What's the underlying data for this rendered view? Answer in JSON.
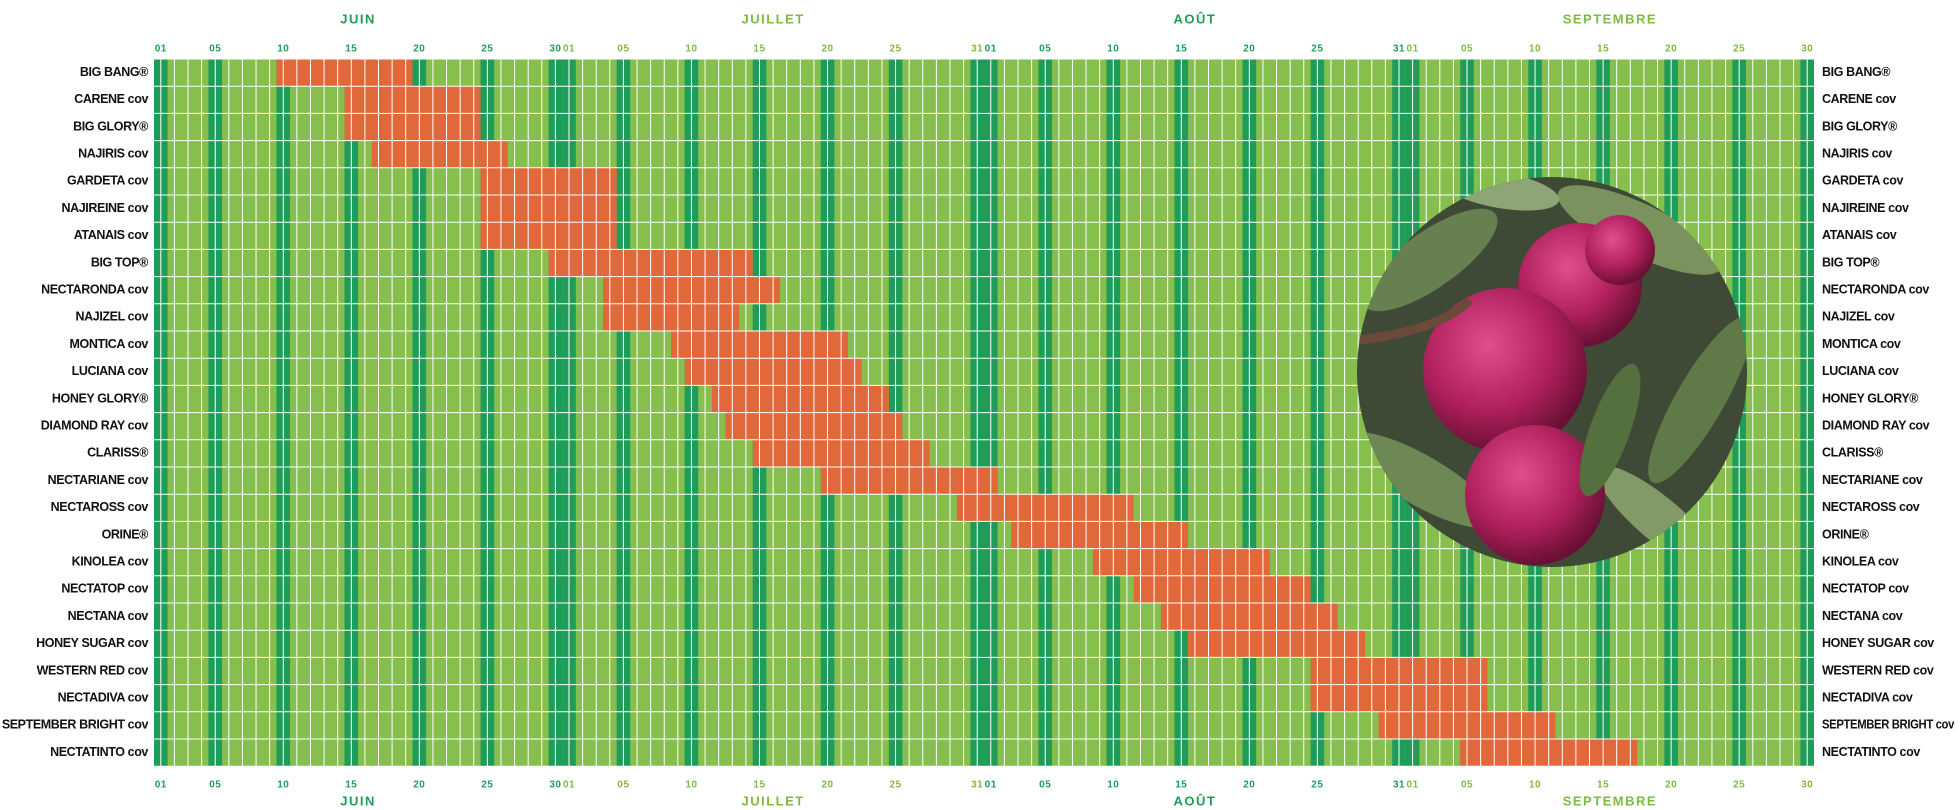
{
  "chart_data": {
    "type": "gantt",
    "xlim": [
      0.5,
      122.5
    ],
    "months": [
      {
        "label": "JUIN",
        "start": 1,
        "end": 30,
        "color": "#1f9d58"
      },
      {
        "label": "JUILLET",
        "start": 31,
        "end": 61,
        "color": "#7dbb42"
      },
      {
        "label": "AOÛT",
        "start": 62,
        "end": 92,
        "color": "#1f9d58"
      },
      {
        "label": "SEPTEMBRE",
        "start": 93,
        "end": 122,
        "color": "#7dbb42"
      }
    ],
    "xticks": [
      {
        "value": 1,
        "label": "01"
      },
      {
        "value": 5,
        "label": "05"
      },
      10,
      15,
      20,
      25,
      30,
      {
        "value": 31,
        "label": "01"
      },
      {
        "value": 35,
        "label": "05"
      },
      {
        "value": 40,
        "label": "10"
      },
      {
        "value": 45,
        "label": "15"
      },
      {
        "value": 50,
        "label": "20"
      },
      {
        "value": 55,
        "label": "25"
      },
      {
        "value": 61,
        "label": "31"
      },
      {
        "value": 62,
        "label": "01"
      },
      {
        "value": 66,
        "label": "05"
      },
      {
        "value": 71,
        "label": "10"
      },
      {
        "value": 76,
        "label": "15"
      },
      {
        "value": 81,
        "label": "20"
      },
      {
        "value": 86,
        "label": "25"
      },
      {
        "value": 92,
        "label": "31"
      },
      {
        "value": 93,
        "label": "01"
      },
      {
        "value": 97,
        "label": "05"
      },
      {
        "value": 102,
        "label": "10"
      },
      {
        "value": 107,
        "label": "15"
      },
      {
        "value": 112,
        "label": "20"
      },
      {
        "value": 117,
        "label": "25"
      },
      {
        "value": 122,
        "label": "30"
      }
    ],
    "colors": {
      "bar": "#e1683a",
      "cell": "#86bf4d",
      "tick_column": "#1f9d58"
    },
    "tasks": [
      {
        "name": "BIG BANG®",
        "start": 10,
        "end": 19
      },
      {
        "name": "CARENE cov",
        "start": 15,
        "end": 24
      },
      {
        "name": "BIG GLORY®",
        "start": 15,
        "end": 24
      },
      {
        "name": "NAJIRIS cov",
        "start": 17,
        "end": 26
      },
      {
        "name": "GARDETA cov",
        "start": 25,
        "end": 34
      },
      {
        "name": "NAJIREINE cov",
        "start": 25,
        "end": 34
      },
      {
        "name": "ATANAIS cov",
        "start": 25,
        "end": 34
      },
      {
        "name": "BIG TOP®",
        "start": 30,
        "end": 44
      },
      {
        "name": "NECTARONDA cov",
        "start": 34,
        "end": 46
      },
      {
        "name": "NAJIZEL cov",
        "start": 34,
        "end": 43
      },
      {
        "name": "MONTICA cov",
        "start": 39,
        "end": 51
      },
      {
        "name": "LUCIANA cov",
        "start": 40,
        "end": 52
      },
      {
        "name": "HONEY GLORY®",
        "start": 42,
        "end": 54
      },
      {
        "name": "DIAMOND RAY cov",
        "start": 43,
        "end": 55
      },
      {
        "name": "CLARISS®",
        "start": 45,
        "end": 57
      },
      {
        "name": "NECTARIANE cov",
        "start": 50,
        "end": 62
      },
      {
        "name": "NECTAROSS cov",
        "start": 60,
        "end": 72
      },
      {
        "name": "ORINE®",
        "start": 64,
        "end": 76
      },
      {
        "name": "KINOLEA cov",
        "start": 70,
        "end": 82
      },
      {
        "name": "NECTATOP cov",
        "start": 73,
        "end": 85
      },
      {
        "name": "NECTANA cov",
        "start": 75,
        "end": 87
      },
      {
        "name": "HONEY SUGAR cov",
        "start": 77,
        "end": 89
      },
      {
        "name": "WESTERN RED cov",
        "start": 86,
        "end": 98
      },
      {
        "name": "NECTADIVA cov",
        "start": 86,
        "end": 98
      },
      {
        "name": "SEPTEMBER BRIGHT cov",
        "start": 91,
        "end": 103
      },
      {
        "name": "NECTATINTO cov",
        "start": 97,
        "end": 109
      }
    ]
  }
}
